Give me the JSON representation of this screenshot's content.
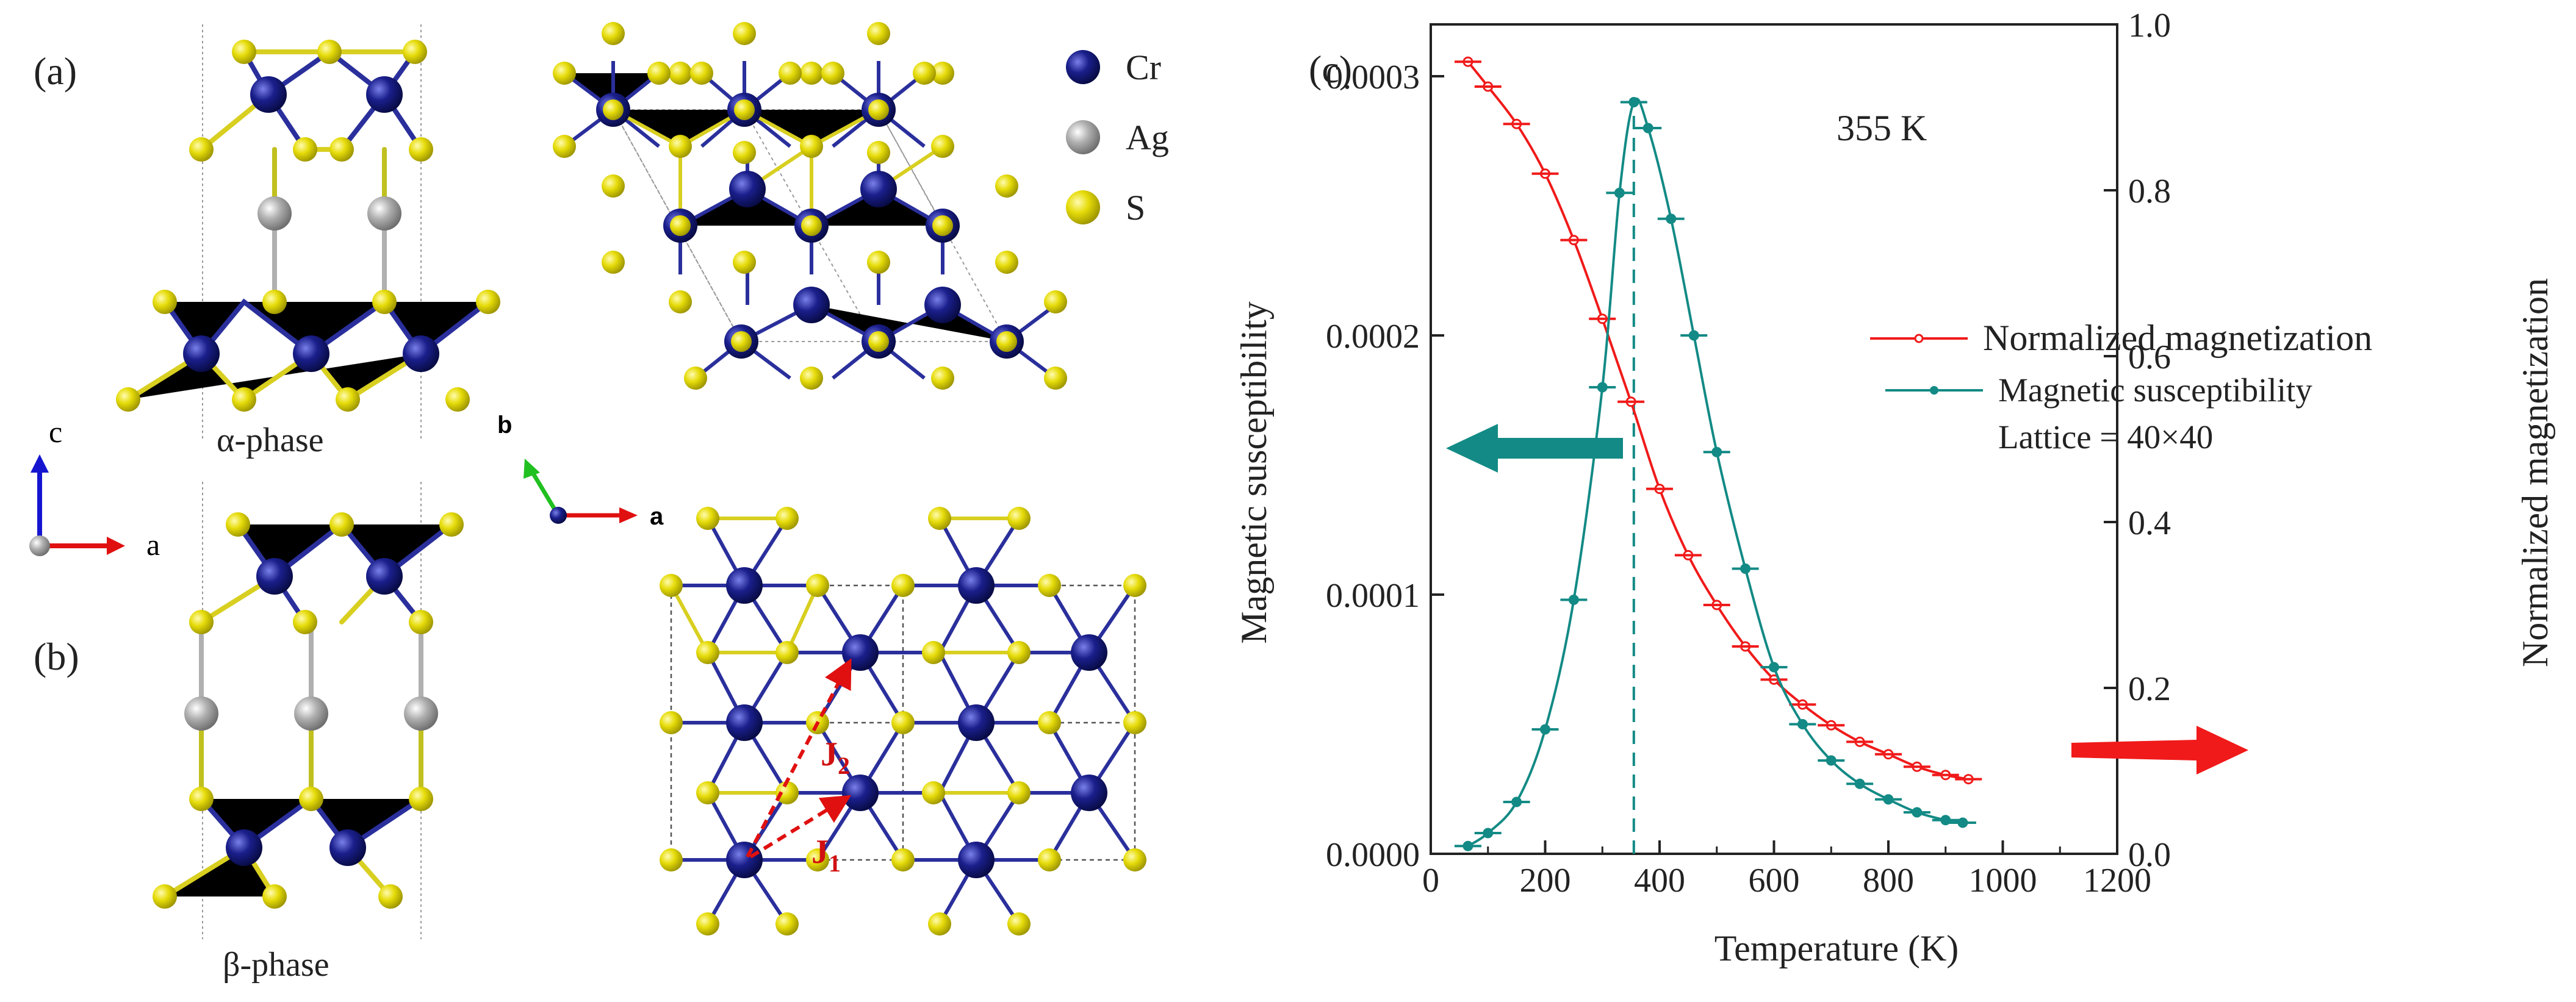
{
  "panels": {
    "a_label": "(a)",
    "b_label": "(b)",
    "c_label": "(c)",
    "alpha_label": "α-phase",
    "beta_label": "β-phase"
  },
  "legend_atoms": [
    {
      "name": "Cr",
      "color": "#1a1f8c"
    },
    {
      "name": "Ag",
      "color": "#a8a8a8"
    },
    {
      "name": "S",
      "color": "#e6dc0a"
    }
  ],
  "axes_side": {
    "c": "c",
    "a": "a"
  },
  "axes_top": {
    "b": "b",
    "a": "a"
  },
  "exchange": {
    "j1": "J",
    "j1_sub": "1",
    "j2": "J",
    "j2_sub": "2"
  },
  "colors": {
    "cr": "#1a1f8c",
    "ag": "#a8a8a8",
    "s": "#e6dc0a",
    "susc": "#138a85",
    "mag": "#f01a1a"
  },
  "chart_data": {
    "type": "line",
    "xlabel": "Temperature (K)",
    "ylabel_left": "Magnetic susceptibility",
    "ylabel_right": "Normalized magnetization",
    "xlim": [
      0,
      1200
    ],
    "ylim_left": [
      0,
      0.00032
    ],
    "ylim_right": [
      0,
      1.0
    ],
    "x_ticks": [
      "0",
      "200",
      "400",
      "600",
      "800",
      "1000",
      "1200"
    ],
    "y_left_ticks": [
      "0.0000",
      "0.0001",
      "0.0002",
      "0.0003"
    ],
    "y_right_ticks": [
      "0.0",
      "0.2",
      "0.4",
      "0.6",
      "0.8",
      "1.0"
    ],
    "annotation": "355 K",
    "tc": 355,
    "legend": {
      "magnetization": "Normalized magnetization",
      "susceptibility": "Magnetic susceptibility",
      "lattice": "Lattice = 40×40"
    },
    "series": [
      {
        "name": "Normalized magnetization",
        "axis": "right",
        "x": [
          65,
          100,
          150,
          200,
          250,
          300,
          350,
          400,
          450,
          500,
          550,
          600,
          650,
          700,
          750,
          800,
          850,
          900,
          940
        ],
        "values": [
          0.955,
          0.925,
          0.88,
          0.82,
          0.74,
          0.645,
          0.545,
          0.44,
          0.36,
          0.3,
          0.25,
          0.21,
          0.18,
          0.155,
          0.135,
          0.12,
          0.105,
          0.095,
          0.09
        ]
      },
      {
        "name": "Magnetic susceptibility",
        "axis": "left",
        "x": [
          65,
          100,
          150,
          200,
          250,
          300,
          330,
          355,
          380,
          420,
          460,
          500,
          550,
          600,
          650,
          700,
          750,
          800,
          850,
          900,
          930
        ],
        "values": [
          3e-06,
          8e-06,
          2e-05,
          4.8e-05,
          9.8e-05,
          0.00018,
          0.000255,
          0.00029,
          0.00028,
          0.000245,
          0.0002,
          0.000155,
          0.00011,
          7.2e-05,
          5e-05,
          3.6e-05,
          2.7e-05,
          2.1e-05,
          1.6e-05,
          1.3e-05,
          1.2e-05
        ]
      }
    ]
  }
}
